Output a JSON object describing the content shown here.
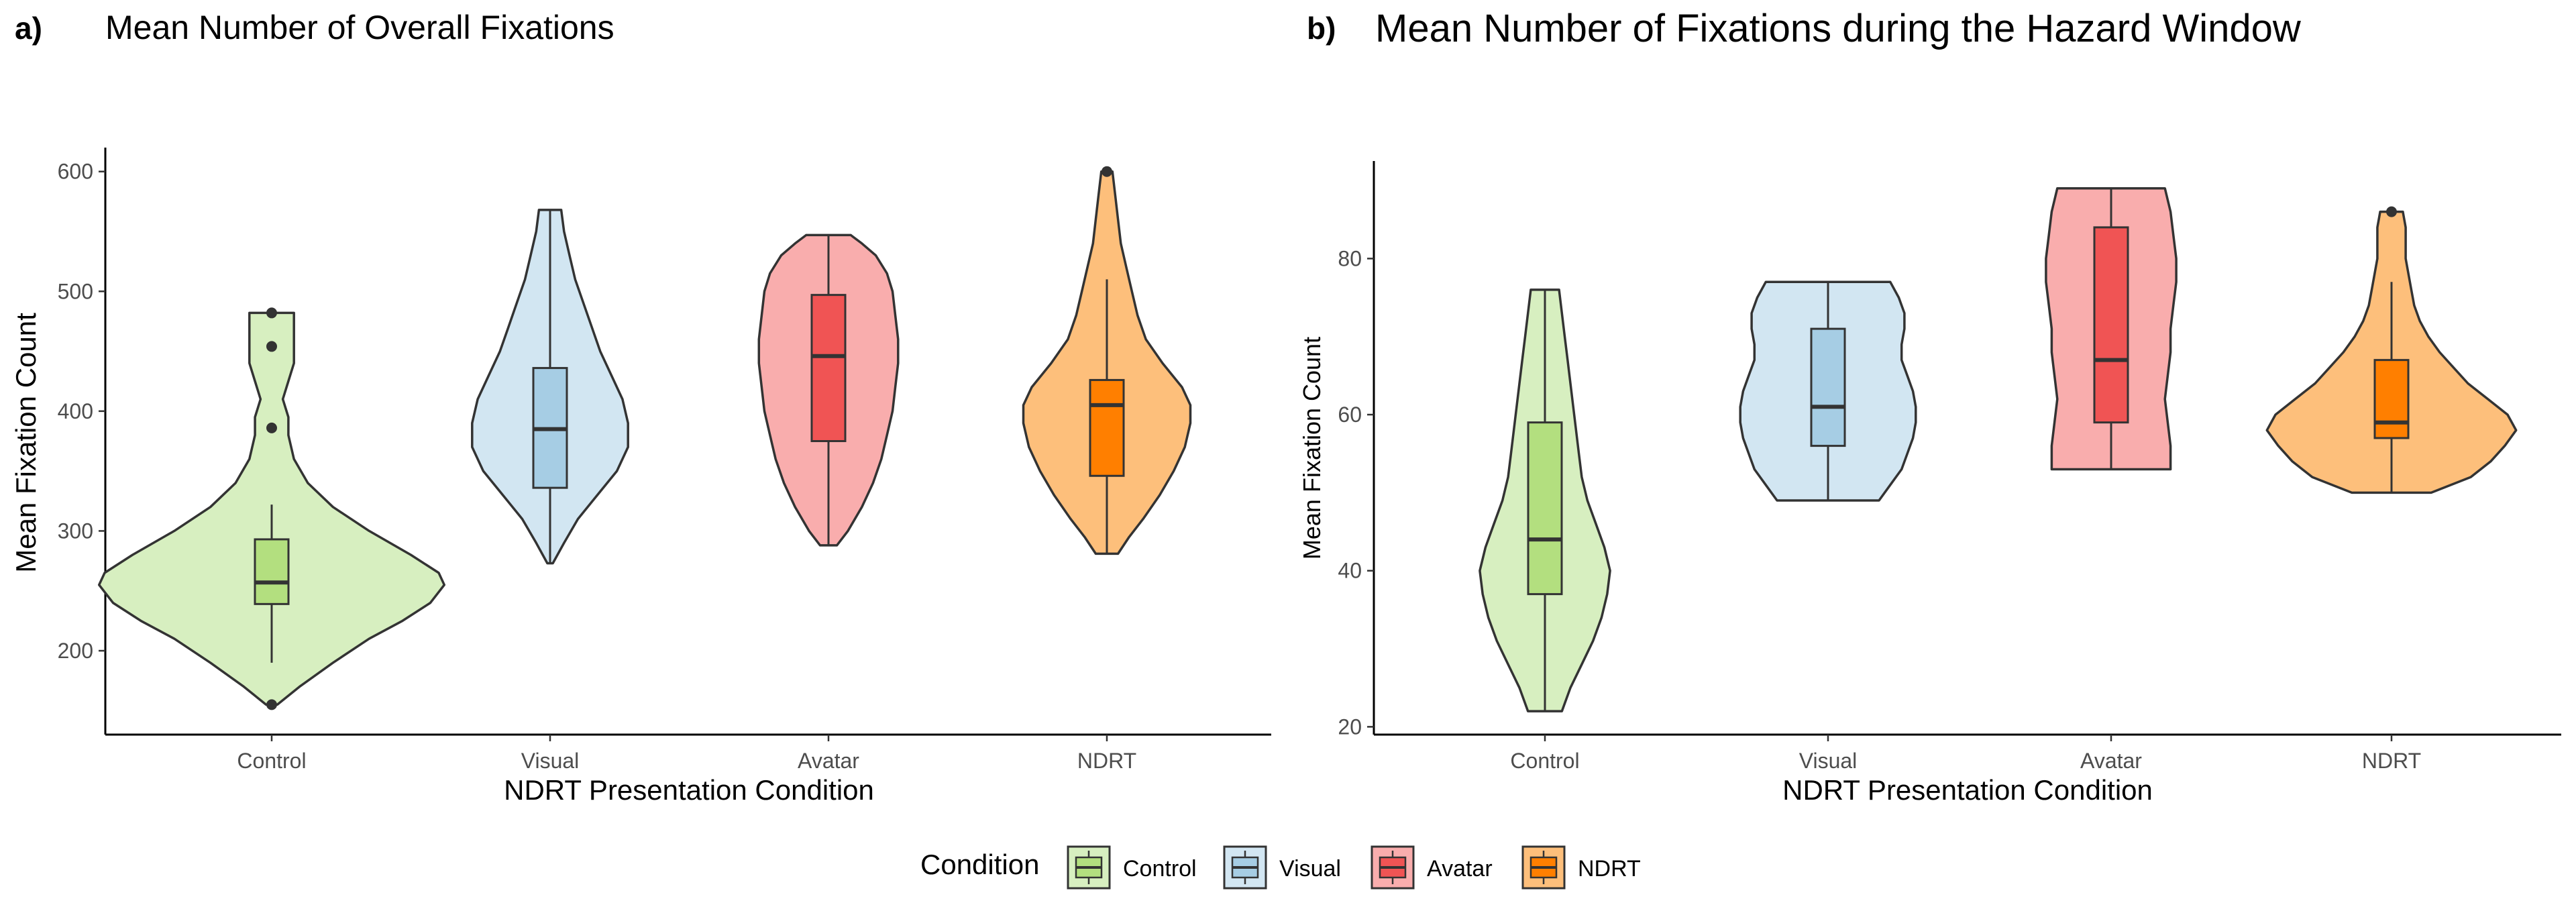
{
  "chart_data": [
    {
      "panel_label": "a)",
      "title": "Mean Number of Overall Fixations",
      "xlabel": "NDRT Presentation Condition",
      "ylabel": "Mean Fixation Count",
      "type": "violin",
      "ylim": [
        130,
        620
      ],
      "yticks": [
        200,
        300,
        400,
        500,
        600
      ],
      "categories": [
        "Control",
        "Visual",
        "Avatar",
        "NDRT"
      ],
      "series": [
        {
          "name": "Control",
          "violin": {
            "y": [
              155,
              170,
              190,
              210,
              225,
              240,
              255,
              265,
              280,
              300,
              320,
              340,
              360,
              380,
              395,
              410,
              425,
              440,
              455,
              465,
              475,
              482
            ],
            "half_width": [
              0.02,
              0.1,
              0.22,
              0.35,
              0.47,
              0.57,
              0.62,
              0.6,
              0.5,
              0.35,
              0.22,
              0.13,
              0.08,
              0.06,
              0.06,
              0.04,
              0.06,
              0.08,
              0.08,
              0.08,
              0.08,
              0.08
            ]
          },
          "box": {
            "min": 190,
            "q1": 239,
            "median": 257,
            "q3": 293,
            "max": 322
          },
          "outliers": [
            155,
            386,
            454,
            482
          ]
        },
        {
          "name": "Visual",
          "violin": {
            "y": [
              273,
              290,
              310,
              330,
              350,
              370,
              390,
              410,
              430,
              450,
              470,
              490,
              510,
              530,
              550,
              568
            ],
            "half_width": [
              0.01,
              0.05,
              0.1,
              0.17,
              0.24,
              0.28,
              0.28,
              0.26,
              0.22,
              0.18,
              0.15,
              0.12,
              0.09,
              0.07,
              0.05,
              0.04
            ]
          },
          "box": {
            "min": 273,
            "q1": 336,
            "median": 385,
            "q3": 436,
            "max": 568
          },
          "outliers": []
        },
        {
          "name": "Avatar",
          "violin": {
            "y": [
              288,
              300,
              320,
              340,
              360,
              380,
              400,
              420,
              440,
              460,
              480,
              500,
              515,
              530,
              540,
              547
            ],
            "half_width": [
              0.03,
              0.07,
              0.12,
              0.16,
              0.19,
              0.21,
              0.23,
              0.24,
              0.25,
              0.25,
              0.24,
              0.23,
              0.21,
              0.17,
              0.12,
              0.08
            ]
          },
          "box": {
            "min": 288,
            "q1": 375,
            "median": 446,
            "q3": 497,
            "max": 547
          },
          "outliers": []
        },
        {
          "name": "NDRT",
          "violin": {
            "y": [
              281,
              295,
              310,
              330,
              350,
              370,
              390,
              405,
              420,
              440,
              460,
              480,
              500,
              520,
              540,
              560,
              580,
              600
            ],
            "half_width": [
              0.04,
              0.08,
              0.13,
              0.19,
              0.24,
              0.28,
              0.3,
              0.3,
              0.27,
              0.2,
              0.14,
              0.11,
              0.09,
              0.07,
              0.05,
              0.04,
              0.03,
              0.02
            ]
          },
          "box": {
            "min": 281,
            "q1": 346,
            "median": 405,
            "q3": 426,
            "max": 510
          },
          "outliers": [
            600
          ]
        }
      ]
    },
    {
      "panel_label": "b)",
      "title": "Mean Number of Fixations during the Hazard Window",
      "xlabel": "NDRT Presentation Condition",
      "ylabel": "Mean Fixation Count",
      "type": "violin",
      "ylim": [
        19,
        92.5
      ],
      "yticks": [
        20,
        40,
        60,
        80
      ],
      "categories": [
        "Control",
        "Visual",
        "Avatar",
        "NDRT"
      ],
      "series": [
        {
          "name": "Control",
          "violin": {
            "y": [
              22,
              25,
              28,
              31,
              34,
              37,
              40,
              43,
              46,
              49,
              52,
              55,
              58,
              61,
              64,
              67,
              70,
              73,
              76
            ],
            "half_width": [
              0.06,
              0.09,
              0.13,
              0.17,
              0.2,
              0.22,
              0.23,
              0.21,
              0.18,
              0.15,
              0.13,
              0.12,
              0.11,
              0.1,
              0.09,
              0.08,
              0.07,
              0.06,
              0.05
            ]
          },
          "box": {
            "min": 22,
            "q1": 37,
            "median": 44,
            "q3": 59,
            "max": 76
          },
          "outliers": []
        },
        {
          "name": "Visual",
          "violin": {
            "y": [
              49,
              51,
              53,
              55,
              57,
              59,
              61,
              63,
              65,
              67,
              69,
              71,
              73,
              75,
              77
            ],
            "half_width": [
              0.18,
              0.22,
              0.26,
              0.28,
              0.3,
              0.31,
              0.31,
              0.3,
              0.28,
              0.26,
              0.26,
              0.27,
              0.27,
              0.25,
              0.22
            ]
          },
          "box": {
            "min": 49,
            "q1": 56,
            "median": 61,
            "q3": 71,
            "max": 77
          },
          "outliers": []
        },
        {
          "name": "Avatar",
          "violin": {
            "y": [
              53,
              56,
              59,
              62,
              65,
              68,
              71,
              74,
              77,
              80,
              83,
              86,
              89
            ],
            "half_width": [
              0.21,
              0.21,
              0.2,
              0.19,
              0.2,
              0.21,
              0.21,
              0.22,
              0.23,
              0.23,
              0.22,
              0.21,
              0.19
            ]
          },
          "box": {
            "min": 53,
            "q1": 59,
            "median": 67,
            "q3": 84,
            "max": 89
          },
          "outliers": []
        },
        {
          "name": "NDRT",
          "violin": {
            "y": [
              50,
              52,
              54,
              56,
              58,
              60,
              62,
              64,
              66,
              68,
              70,
              72,
              74,
              76,
              78,
              80,
              82,
              84,
              86
            ],
            "half_width": [
              0.14,
              0.28,
              0.35,
              0.4,
              0.44,
              0.41,
              0.34,
              0.27,
              0.22,
              0.17,
              0.13,
              0.1,
              0.08,
              0.07,
              0.06,
              0.05,
              0.05,
              0.05,
              0.04
            ]
          },
          "box": {
            "min": 50,
            "q1": 57,
            "median": 59,
            "q3": 67,
            "max": 77
          },
          "outliers": [
            86
          ]
        }
      ]
    }
  ],
  "legend": {
    "title": "Condition",
    "position": "bottom",
    "items": [
      {
        "label": "Control",
        "fill": "#d7efc0",
        "box": "#b3df7f"
      },
      {
        "label": "Visual",
        "fill": "#d2e6f2",
        "box": "#a6cde4"
      },
      {
        "label": "Avatar",
        "fill": "#f9adad",
        "box": "#f05454"
      },
      {
        "label": "NDRT",
        "fill": "#fdbf7b",
        "box": "#ff7f00"
      }
    ]
  },
  "colors": {
    "Control": {
      "violin": "#d7efc0",
      "box": "#b3df7f"
    },
    "Visual": {
      "violin": "#d2e6f2",
      "box": "#a6cde4"
    },
    "Avatar": {
      "violin": "#f9adad",
      "box": "#f05454"
    },
    "NDRT": {
      "violin": "#fdbf7b",
      "box": "#ff7f00"
    },
    "outline": "#333333",
    "axis": "#000000",
    "tick_text": "#4d4d4d"
  }
}
